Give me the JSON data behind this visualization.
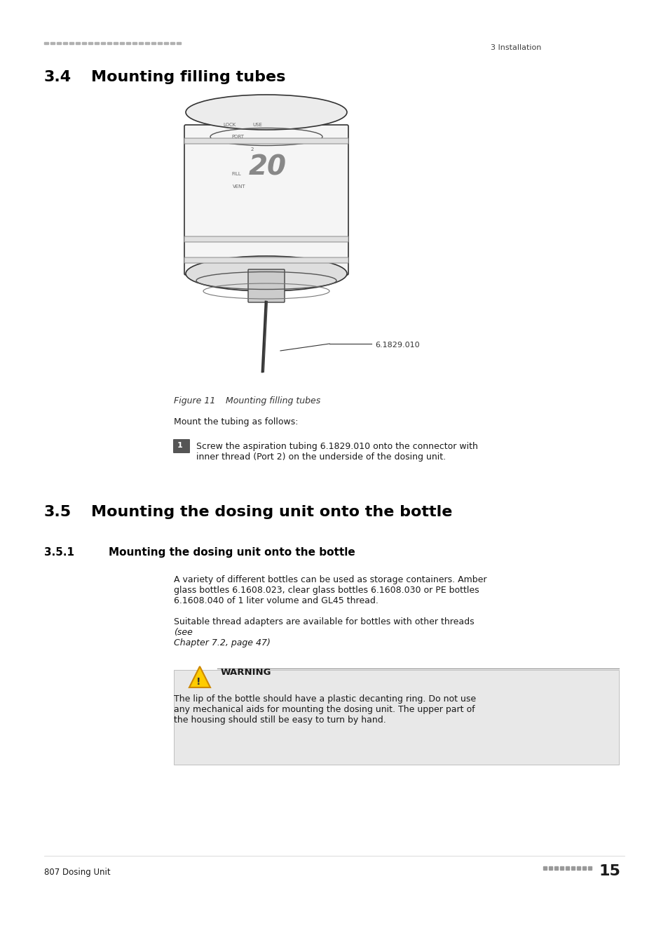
{
  "page_bg": "#ffffff",
  "header_line_color": "#b0b0b0",
  "header_left_text": "========================",
  "header_right_text": "3 Installation",
  "section_34_number": "3.4",
  "section_34_title": "Mounting filling tubes",
  "figure_label": "6.1829.010",
  "figure_caption_num": "Figure 11",
  "figure_caption_text": "   Mounting filling tubes",
  "step_intro": "Mount the tubing as follows:",
  "step1_num": "1",
  "step1_text": "Screw the aspiration tubing 6.1829.010 onto the connector with\ninner thread (Port 2) on the underside of the dosing unit.",
  "section_35_number": "3.5",
  "section_35_title": "Mounting the dosing unit onto the bottle",
  "section_351_number": "3.5.1",
  "section_351_title": "Mounting the dosing unit onto the bottle",
  "para1": "A variety of different bottles can be used as storage containers. Amber\nglass bottles 6.1608.023, clear glass bottles 6.1608.030 or PE bottles\n6.1608.040 of 1 liter volume and GL45 thread.",
  "para2_normal": "Suitable thread adapters are available for bottles with other threads ",
  "para2_italic": "(see\nChapter 7.2, page 47)",
  "para2_end": ".",
  "warning_title": "WARNING",
  "warning_text": "The lip of the bottle should have a plastic decanting ring. Do not use\nany mechanical aids for mounting the dosing unit. The upper part of\nthe housing should still be easy to turn by hand.",
  "footer_left": "807 Dosing Unit",
  "footer_right_dots": "■■■■■■■■■",
  "footer_page": "15",
  "text_color": "#1a1a1a",
  "gray_color": "#808080",
  "section_color": "#000000",
  "warning_bg": "#e8e8e8",
  "warning_border": "#cccccc"
}
